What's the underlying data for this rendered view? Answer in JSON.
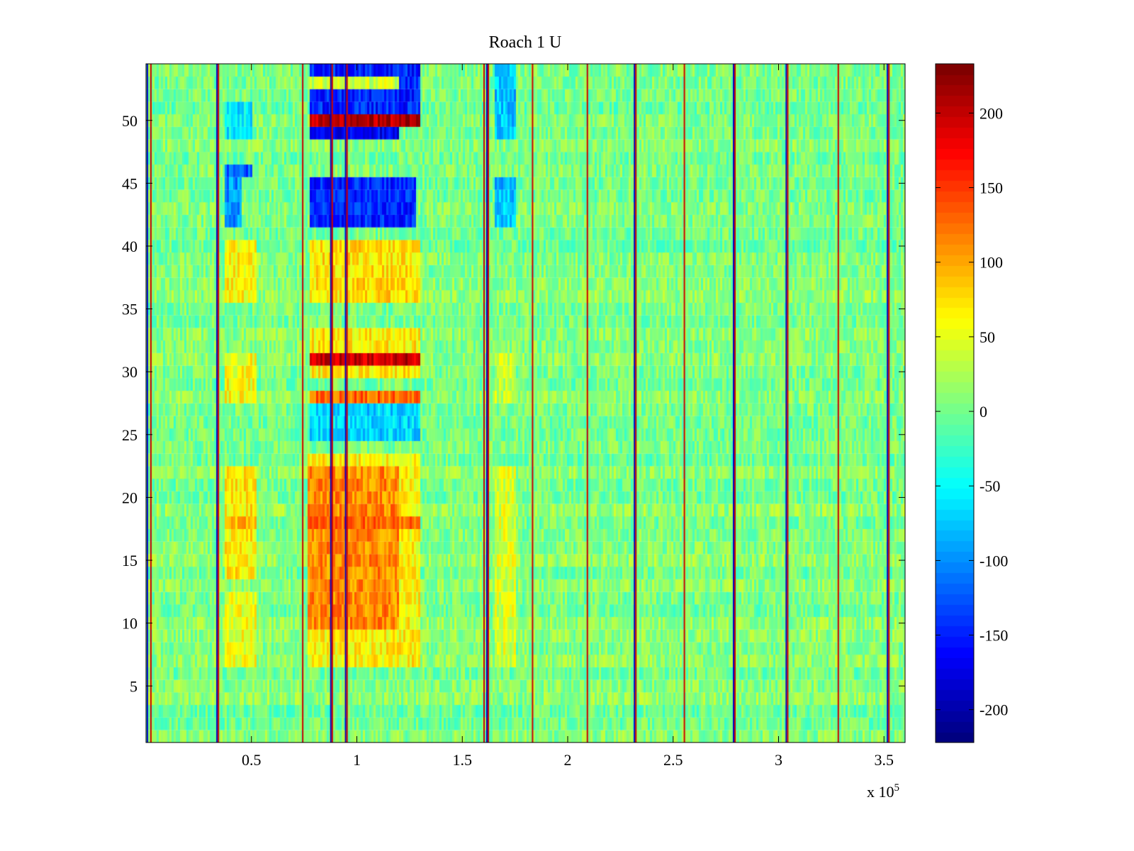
{
  "chart_data": {
    "type": "heatmap",
    "title": "Roach 1 U",
    "xlabel": "",
    "ylabel": "",
    "xlim": [
      0,
      360000
    ],
    "ylim": [
      0.5,
      54.5
    ],
    "x_exponent_label": "x 10",
    "x_exponent_power": "5",
    "xticks": [
      {
        "value": 50000,
        "label": "0.5"
      },
      {
        "value": 100000,
        "label": "1"
      },
      {
        "value": 150000,
        "label": "1.5"
      },
      {
        "value": 200000,
        "label": "2"
      },
      {
        "value": 250000,
        "label": "2.5"
      },
      {
        "value": 300000,
        "label": "3"
      },
      {
        "value": 350000,
        "label": "3.5"
      }
    ],
    "yticks": [
      {
        "value": 5,
        "label": "5"
      },
      {
        "value": 10,
        "label": "10"
      },
      {
        "value": 15,
        "label": "15"
      },
      {
        "value": 20,
        "label": "20"
      },
      {
        "value": 25,
        "label": "25"
      },
      {
        "value": 30,
        "label": "30"
      },
      {
        "value": 35,
        "label": "35"
      },
      {
        "value": 40,
        "label": "40"
      },
      {
        "value": 45,
        "label": "45"
      },
      {
        "value": 50,
        "label": "50"
      }
    ],
    "rows": 54,
    "colormap": "jet",
    "clim": [
      -222,
      233
    ],
    "colorbar_ticks": [
      {
        "value": 200,
        "label": "200"
      },
      {
        "value": 150,
        "label": "150"
      },
      {
        "value": 100,
        "label": "100"
      },
      {
        "value": 50,
        "label": "50"
      },
      {
        "value": 0,
        "label": "0"
      },
      {
        "value": -50,
        "label": "-50"
      },
      {
        "value": -100,
        "label": "-100"
      },
      {
        "value": -150,
        "label": "-150"
      },
      {
        "value": -200,
        "label": "-200"
      }
    ],
    "baseline_value": 5,
    "noise_amplitude": 28,
    "stimulus_lines": {
      "positive_x": [
        2000,
        34000,
        74000,
        88000,
        95000,
        160000,
        162000,
        183000,
        209000,
        232000,
        255000,
        279000,
        304000,
        328000,
        352000
      ],
      "negative_x": [
        1000,
        34000,
        88000,
        95000,
        162000,
        232000,
        279000,
        304000,
        352000
      ]
    },
    "regions": [
      {
        "x_range": [
          37000,
          52000
        ],
        "rows": [
          7,
          12
        ],
        "value": 55
      },
      {
        "x_range": [
          37000,
          52000
        ],
        "rows": [
          14,
          22
        ],
        "value": 70
      },
      {
        "x_range": [
          37000,
          52000
        ],
        "rows": [
          18,
          18
        ],
        "value": 95
      },
      {
        "x_range": [
          37000,
          52000
        ],
        "rows": [
          28,
          31
        ],
        "value": 60
      },
      {
        "x_range": [
          37000,
          52000
        ],
        "rows": [
          36,
          40
        ],
        "value": 65
      },
      {
        "x_range": [
          37000,
          45000
        ],
        "rows": [
          42,
          45
        ],
        "value": -100
      },
      {
        "x_range": [
          37000,
          50000
        ],
        "rows": [
          46,
          46
        ],
        "value": -130
      },
      {
        "x_range": [
          37000,
          50000
        ],
        "rows": [
          49,
          51
        ],
        "value": -60
      },
      {
        "x_range": [
          77000,
          130000
        ],
        "rows": [
          7,
          23
        ],
        "value": 65
      },
      {
        "x_range": [
          77000,
          120000
        ],
        "rows": [
          10,
          22
        ],
        "value": 115
      },
      {
        "x_range": [
          77000,
          130000
        ],
        "rows": [
          18,
          18
        ],
        "value": 135
      },
      {
        "x_range": [
          78000,
          130000
        ],
        "rows": [
          28,
          28
        ],
        "value": 130
      },
      {
        "x_range": [
          78000,
          130000
        ],
        "rows": [
          30,
          33
        ],
        "value": 70
      },
      {
        "x_range": [
          78000,
          130000
        ],
        "rows": [
          31,
          31
        ],
        "value": 200
      },
      {
        "x_range": [
          78000,
          130000
        ],
        "rows": [
          36,
          40
        ],
        "value": 75
      },
      {
        "x_range": [
          78000,
          130000
        ],
        "rows": [
          25,
          27
        ],
        "value": -70
      },
      {
        "x_range": [
          78000,
          128000
        ],
        "rows": [
          42,
          45
        ],
        "value": -150
      },
      {
        "x_range": [
          78000,
          120000
        ],
        "rows": [
          49,
          49
        ],
        "value": -170
      },
      {
        "x_range": [
          78000,
          130000
        ],
        "rows": [
          50,
          50
        ],
        "value": 210
      },
      {
        "x_range": [
          78000,
          130000
        ],
        "rows": [
          51,
          54
        ],
        "value": -150
      },
      {
        "x_range": [
          78000,
          120000
        ],
        "rows": [
          53,
          53
        ],
        "value": 40
      },
      {
        "x_range": [
          165000,
          175000
        ],
        "rows": [
          7,
          22
        ],
        "value": 45
      },
      {
        "x_range": [
          165000,
          175000
        ],
        "rows": [
          28,
          31
        ],
        "value": 35
      },
      {
        "x_range": [
          165000,
          175000
        ],
        "rows": [
          42,
          45
        ],
        "value": -80
      },
      {
        "x_range": [
          165000,
          175000
        ],
        "rows": [
          49,
          54
        ],
        "value": -80
      }
    ]
  }
}
